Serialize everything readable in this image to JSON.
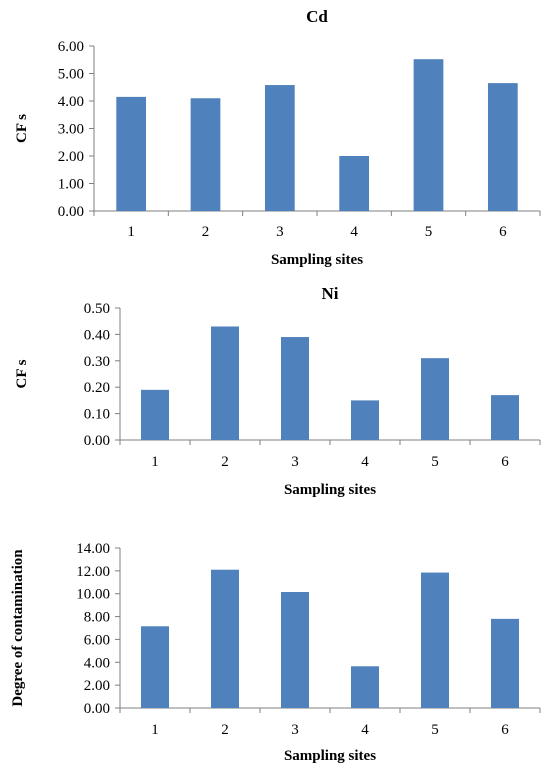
{
  "chart_data": [
    {
      "type": "bar",
      "title": "Cd",
      "xlabel": "Sampling  sites",
      "ylabel": "CF s",
      "categories": [
        "1",
        "2",
        "3",
        "4",
        "5",
        "6"
      ],
      "values": [
        4.15,
        4.1,
        4.58,
        2.0,
        5.52,
        4.65
      ],
      "ylim": [
        0,
        6
      ],
      "yticks": [
        "0.00",
        "1.00",
        "2.00",
        "3.00",
        "4.00",
        "5.00",
        "6.00"
      ],
      "bar_color": "#4f81bd",
      "grid": false
    },
    {
      "type": "bar",
      "title": "Ni",
      "xlabel": "Sampling  sites",
      "ylabel": "CF s",
      "categories": [
        "1",
        "2",
        "3",
        "4",
        "5",
        "6"
      ],
      "values": [
        0.19,
        0.43,
        0.39,
        0.15,
        0.31,
        0.17
      ],
      "ylim": [
        0,
        0.5
      ],
      "yticks": [
        "0.00",
        "0.10",
        "0.20",
        "0.30",
        "0.40",
        "0.50"
      ],
      "bar_color": "#4f81bd",
      "grid": false
    },
    {
      "type": "bar",
      "title": "",
      "xlabel": "Sampling  sites",
      "ylabel": "Degree of contamination",
      "categories": [
        "1",
        "2",
        "3",
        "4",
        "5",
        "6"
      ],
      "values": [
        7.15,
        12.1,
        10.15,
        3.65,
        11.85,
        7.8
      ],
      "ylim": [
        0,
        14
      ],
      "yticks": [
        "0.00",
        "2.00",
        "4.00",
        "6.00",
        "8.00",
        "10.00",
        "12.00",
        "14.00"
      ],
      "bar_color": "#4f81bd",
      "grid": false
    }
  ]
}
